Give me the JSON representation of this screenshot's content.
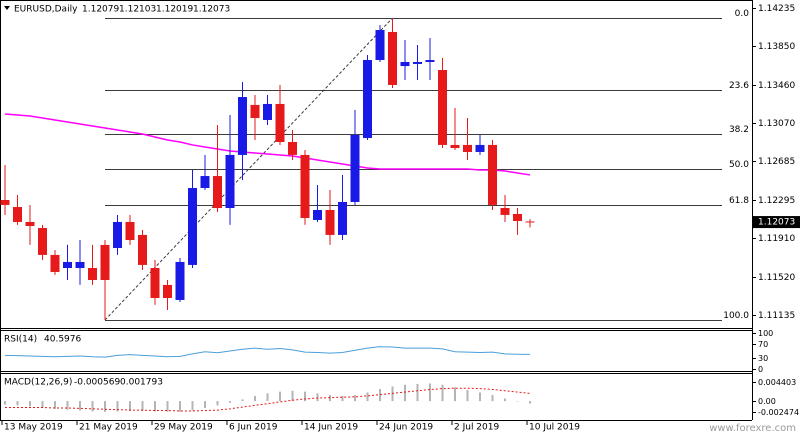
{
  "chart_data": {
    "type": "candlestick",
    "title": "EURUSD,Daily",
    "categories": [
      "13 May 2019",
      null,
      null,
      null,
      null,
      null,
      "21 May 2019",
      null,
      null,
      null,
      null,
      null,
      "29 May 2019",
      null,
      null,
      null,
      null,
      null,
      "6 Jun 2019",
      null,
      null,
      null,
      null,
      null,
      "14 Jun 2019",
      null,
      null,
      null,
      null,
      null,
      "24 Jun 2019",
      null,
      null,
      null,
      null,
      null,
      "2 Jul 2019",
      null,
      null,
      null,
      null,
      null,
      "10 Jul 2019"
    ],
    "candles": [
      {
        "open": 1.12296,
        "high": 1.1265,
        "low": 1.12145,
        "close": 1.12246
      },
      {
        "open": 1.12225,
        "high": 1.12347,
        "low": 1.12044,
        "close": 1.12074
      },
      {
        "open": 1.12074,
        "high": 1.12246,
        "low": 1.11842,
        "close": 1.12033
      },
      {
        "open": 1.12013,
        "high": 1.12044,
        "low": 1.1169,
        "close": 1.11741
      },
      {
        "open": 1.11741,
        "high": 1.11791,
        "low": 1.11539,
        "close": 1.11569
      },
      {
        "open": 1.11609,
        "high": 1.11842,
        "low": 1.11488,
        "close": 1.1167
      },
      {
        "open": 1.11609,
        "high": 1.11892,
        "low": 1.11438,
        "close": 1.1167
      },
      {
        "open": 1.11609,
        "high": 1.11842,
        "low": 1.11438,
        "close": 1.11488
      },
      {
        "open": 1.11842,
        "high": 1.11892,
        "low": 1.11084,
        "close": 1.11488
      },
      {
        "open": 1.11811,
        "high": 1.12145,
        "low": 1.11741,
        "close": 1.12074
      },
      {
        "open": 1.12074,
        "high": 1.12145,
        "low": 1.11842,
        "close": 1.11892
      },
      {
        "open": 1.11943,
        "high": 1.11993,
        "low": 1.11589,
        "close": 1.1164
      },
      {
        "open": 1.11609,
        "high": 1.1169,
        "low": 1.11236,
        "close": 1.11306
      },
      {
        "open": 1.11438,
        "high": 1.11488,
        "low": 1.11185,
        "close": 1.11306
      },
      {
        "open": 1.11286,
        "high": 1.1171,
        "low": 1.11266,
        "close": 1.1167
      },
      {
        "open": 1.1164,
        "high": 1.12599,
        "low": 1.11609,
        "close": 1.12417
      },
      {
        "open": 1.12417,
        "high": 1.12751,
        "low": 1.12397,
        "close": 1.12538
      },
      {
        "open": 1.12538,
        "high": 1.13054,
        "low": 1.12175,
        "close": 1.12215
      },
      {
        "open": 1.12215,
        "high": 1.13155,
        "low": 1.12044,
        "close": 1.12751
      },
      {
        "open": 1.12751,
        "high": 1.13488,
        "low": 1.12498,
        "close": 1.13336
      },
      {
        "open": 1.13256,
        "high": 1.13357,
        "low": 1.12902,
        "close": 1.13124
      },
      {
        "open": 1.13104,
        "high": 1.13357,
        "low": 1.13054,
        "close": 1.13266
      },
      {
        "open": 1.13266,
        "high": 1.13458,
        "low": 1.12852,
        "close": 1.12882
      },
      {
        "open": 1.12882,
        "high": 1.13003,
        "low": 1.127,
        "close": 1.12751
      },
      {
        "open": 1.12751,
        "high": 1.12801,
        "low": 1.12044,
        "close": 1.12114
      },
      {
        "open": 1.12094,
        "high": 1.12448,
        "low": 1.12074,
        "close": 1.12195
      },
      {
        "open": 1.12195,
        "high": 1.12397,
        "low": 1.11842,
        "close": 1.11943
      },
      {
        "open": 1.11943,
        "high": 1.12549,
        "low": 1.11892,
        "close": 1.12276
      },
      {
        "open": 1.12276,
        "high": 1.13205,
        "low": 1.12246,
        "close": 1.12953
      },
      {
        "open": 1.12922,
        "high": 1.13761,
        "low": 1.12902,
        "close": 1.1371
      },
      {
        "open": 1.1371,
        "high": 1.14064,
        "low": 1.1369,
        "close": 1.14013
      },
      {
        "open": 1.13993,
        "high": 1.14134,
        "low": 1.13427,
        "close": 1.13458
      },
      {
        "open": 1.13649,
        "high": 1.13912,
        "low": 1.13508,
        "close": 1.1369
      },
      {
        "open": 1.1367,
        "high": 1.13862,
        "low": 1.13508,
        "close": 1.1369
      },
      {
        "open": 1.1369,
        "high": 1.13932,
        "low": 1.13508,
        "close": 1.1371
      },
      {
        "open": 1.13609,
        "high": 1.1373,
        "low": 1.12821,
        "close": 1.12852
      },
      {
        "open": 1.12852,
        "high": 1.13225,
        "low": 1.12801,
        "close": 1.12821
      },
      {
        "open": 1.12852,
        "high": 1.13124,
        "low": 1.127,
        "close": 1.12781
      },
      {
        "open": 1.12781,
        "high": 1.12953,
        "low": 1.12751,
        "close": 1.12852
      },
      {
        "open": 1.12852,
        "high": 1.12902,
        "low": 1.12195,
        "close": 1.12246
      },
      {
        "open": 1.12215,
        "high": 1.12347,
        "low": 1.12074,
        "close": 1.12145
      },
      {
        "open": 1.12155,
        "high": 1.12215,
        "low": 1.11943,
        "close": 1.12084
      },
      {
        "open": 1.12079,
        "high": 1.12103,
        "low": 1.12019,
        "close": 1.12073
      }
    ],
    "bull_color": "#1a1ae6",
    "bear_color": "#e61a1a",
    "ylim": [
      1.11013,
      1.14296
    ],
    "yticks": [
      1.14235,
      {
        "value": 1.1385,
        "label": "1.13850"
      },
      {
        "value": 1.1346,
        "label": "1.13460"
      },
      {
        "value": 1.1307,
        "label": "1.13070"
      },
      1.12685,
      1.12295,
      {
        "value": 1.1191,
        "label": "1.11910"
      },
      {
        "value": 1.1152,
        "label": "1.11520"
      },
      1.11135
    ],
    "ma": {
      "color": "#ff00ff",
      "values": [
        1.13165,
        1.13154,
        1.13144,
        1.13124,
        1.13104,
        1.13084,
        1.13064,
        1.13043,
        1.13023,
        1.13003,
        1.12983,
        1.12963,
        1.12932,
        1.12902,
        1.12882,
        1.12852,
        1.12831,
        1.12811,
        1.12791,
        1.12781,
        1.12771,
        1.12761,
        1.12751,
        1.1274,
        1.1272,
        1.127,
        1.1268,
        1.1266,
        1.12639,
        1.12619,
        1.12609,
        1.12609,
        1.12609,
        1.12609,
        1.12609,
        1.12609,
        1.12609,
        1.12609,
        1.12599,
        1.12599,
        1.12589,
        1.12569,
        1.12549
      ]
    },
    "fibonacci": {
      "color": "#3c3c3c",
      "levels": [
        {
          "value": 1.14134,
          "label": "0.0"
        },
        {
          "value": 1.13407,
          "label": "23.6"
        },
        {
          "value": 1.12963,
          "label": "38.2"
        },
        {
          "value": 1.12609,
          "label": "50.0"
        },
        {
          "value": 1.12246,
          "label": "61.8"
        },
        {
          "value": 1.11084,
          "label": "100.0"
        }
      ]
    },
    "rsi": {
      "name": "RSI(14)",
      "color": "#4a9fd8",
      "ylim": [
        0,
        100
      ],
      "yticks": [
        100,
        70,
        30,
        0
      ],
      "values": [
        38,
        37,
        36,
        35,
        34,
        35,
        36,
        34,
        33,
        38,
        40,
        38,
        36,
        34,
        35,
        42,
        48,
        45,
        50,
        55,
        58,
        55,
        57,
        53,
        47,
        46,
        44,
        46,
        52,
        58,
        62,
        61,
        58,
        58,
        58,
        56,
        48,
        47,
        46,
        47,
        42,
        41,
        40.5976
      ]
    },
    "macd": {
      "name": "MACD(12,26,9)",
      "histogram_color": "#b4b4b4",
      "signal_color": "#e61a1a",
      "ylim": [
        -0.0044,
        0.0063
      ],
      "yticks": [
        0.004403,
        {
          "value": 0,
          "label": "0.00"
        },
        -0.002474
      ],
      "main": [
        -0.0008,
        -0.001,
        -0.0012,
        -0.0015,
        -0.0018,
        -0.002,
        -0.0022,
        -0.0024,
        -0.0025,
        -0.0024,
        -0.0023,
        -0.0023,
        -0.0024,
        -0.0025,
        -0.0025,
        -0.0022,
        -0.0016,
        -0.001,
        -0.0004,
        0.0004,
        0.0012,
        0.0018,
        0.0022,
        0.0024,
        0.0022,
        0.0018,
        0.0014,
        0.0012,
        0.0014,
        0.002,
        0.0028,
        0.0034,
        0.0038,
        0.004,
        0.0041,
        0.0038,
        0.0032,
        0.0026,
        0.002,
        0.0014,
        0.0006,
        0,
        -0.000569
      ],
      "signal": [
        -0.0015,
        -0.0015,
        -0.0015,
        -0.0015,
        -0.0016,
        -0.0016,
        -0.0017,
        -0.0018,
        -0.0019,
        -0.002,
        -0.0021,
        -0.0021,
        -0.0022,
        -0.0022,
        -0.0023,
        -0.0023,
        -0.0022,
        -0.0021,
        -0.0018,
        -0.0014,
        -0.001,
        -0.0006,
        -0.0002,
        0.0002,
        0.0005,
        0.0007,
        0.0008,
        0.0009,
        0.001,
        0.0012,
        0.0015,
        0.0018,
        0.0021,
        0.0024,
        0.0027,
        0.0029,
        0.003,
        0.003,
        0.0029,
        0.0027,
        0.0024,
        0.0021,
        0.001793
      ]
    },
    "watermark": "www.forexre.com"
  }
}
